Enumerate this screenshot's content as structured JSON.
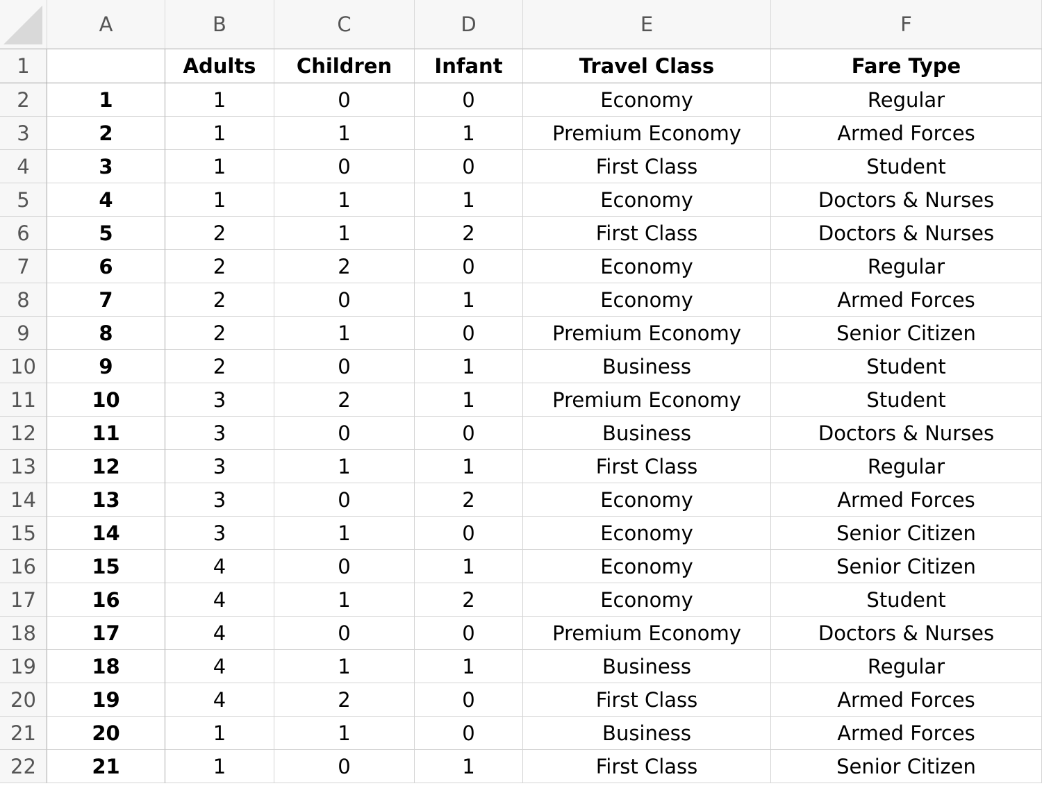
{
  "columns": [
    "A",
    "B",
    "C",
    "D",
    "E",
    "F"
  ],
  "header_row": [
    "",
    "Adults",
    "Children",
    "Infant",
    "Travel Class",
    "Fare Type"
  ],
  "rows": [
    [
      "1",
      "1",
      "0",
      "0",
      "Economy",
      "Regular"
    ],
    [
      "2",
      "1",
      "1",
      "1",
      "Premium Economy",
      "Armed Forces"
    ],
    [
      "3",
      "1",
      "0",
      "0",
      "First Class",
      "Student"
    ],
    [
      "4",
      "1",
      "1",
      "1",
      "Economy",
      "Doctors & Nurses"
    ],
    [
      "5",
      "2",
      "1",
      "2",
      "First Class",
      "Doctors & Nurses"
    ],
    [
      "6",
      "2",
      "2",
      "0",
      "Economy",
      "Regular"
    ],
    [
      "7",
      "2",
      "0",
      "1",
      "Economy",
      "Armed Forces"
    ],
    [
      "8",
      "2",
      "1",
      "0",
      "Premium Economy",
      "Senior Citizen"
    ],
    [
      "9",
      "2",
      "0",
      "1",
      "Business",
      "Student"
    ],
    [
      "10",
      "3",
      "2",
      "1",
      "Premium Economy",
      "Student"
    ],
    [
      "11",
      "3",
      "0",
      "0",
      "Business",
      "Doctors & Nurses"
    ],
    [
      "12",
      "3",
      "1",
      "1",
      "First Class",
      "Regular"
    ],
    [
      "13",
      "3",
      "0",
      "2",
      "Economy",
      "Armed Forces"
    ],
    [
      "14",
      "3",
      "1",
      "0",
      "Economy",
      "Senior Citizen"
    ],
    [
      "15",
      "4",
      "0",
      "1",
      "Economy",
      "Senior Citizen"
    ],
    [
      "16",
      "4",
      "1",
      "2",
      "Economy",
      "Student"
    ],
    [
      "17",
      "4",
      "0",
      "0",
      "Premium Economy",
      "Doctors & Nurses"
    ],
    [
      "18",
      "4",
      "1",
      "1",
      "Business",
      "Regular"
    ],
    [
      "19",
      "4",
      "2",
      "0",
      "First Class",
      "Armed Forces"
    ],
    [
      "20",
      "1",
      "1",
      "0",
      "Business",
      "Armed Forces"
    ],
    [
      "21",
      "1",
      "0",
      "1",
      "First Class",
      "Senior Citizen"
    ]
  ]
}
